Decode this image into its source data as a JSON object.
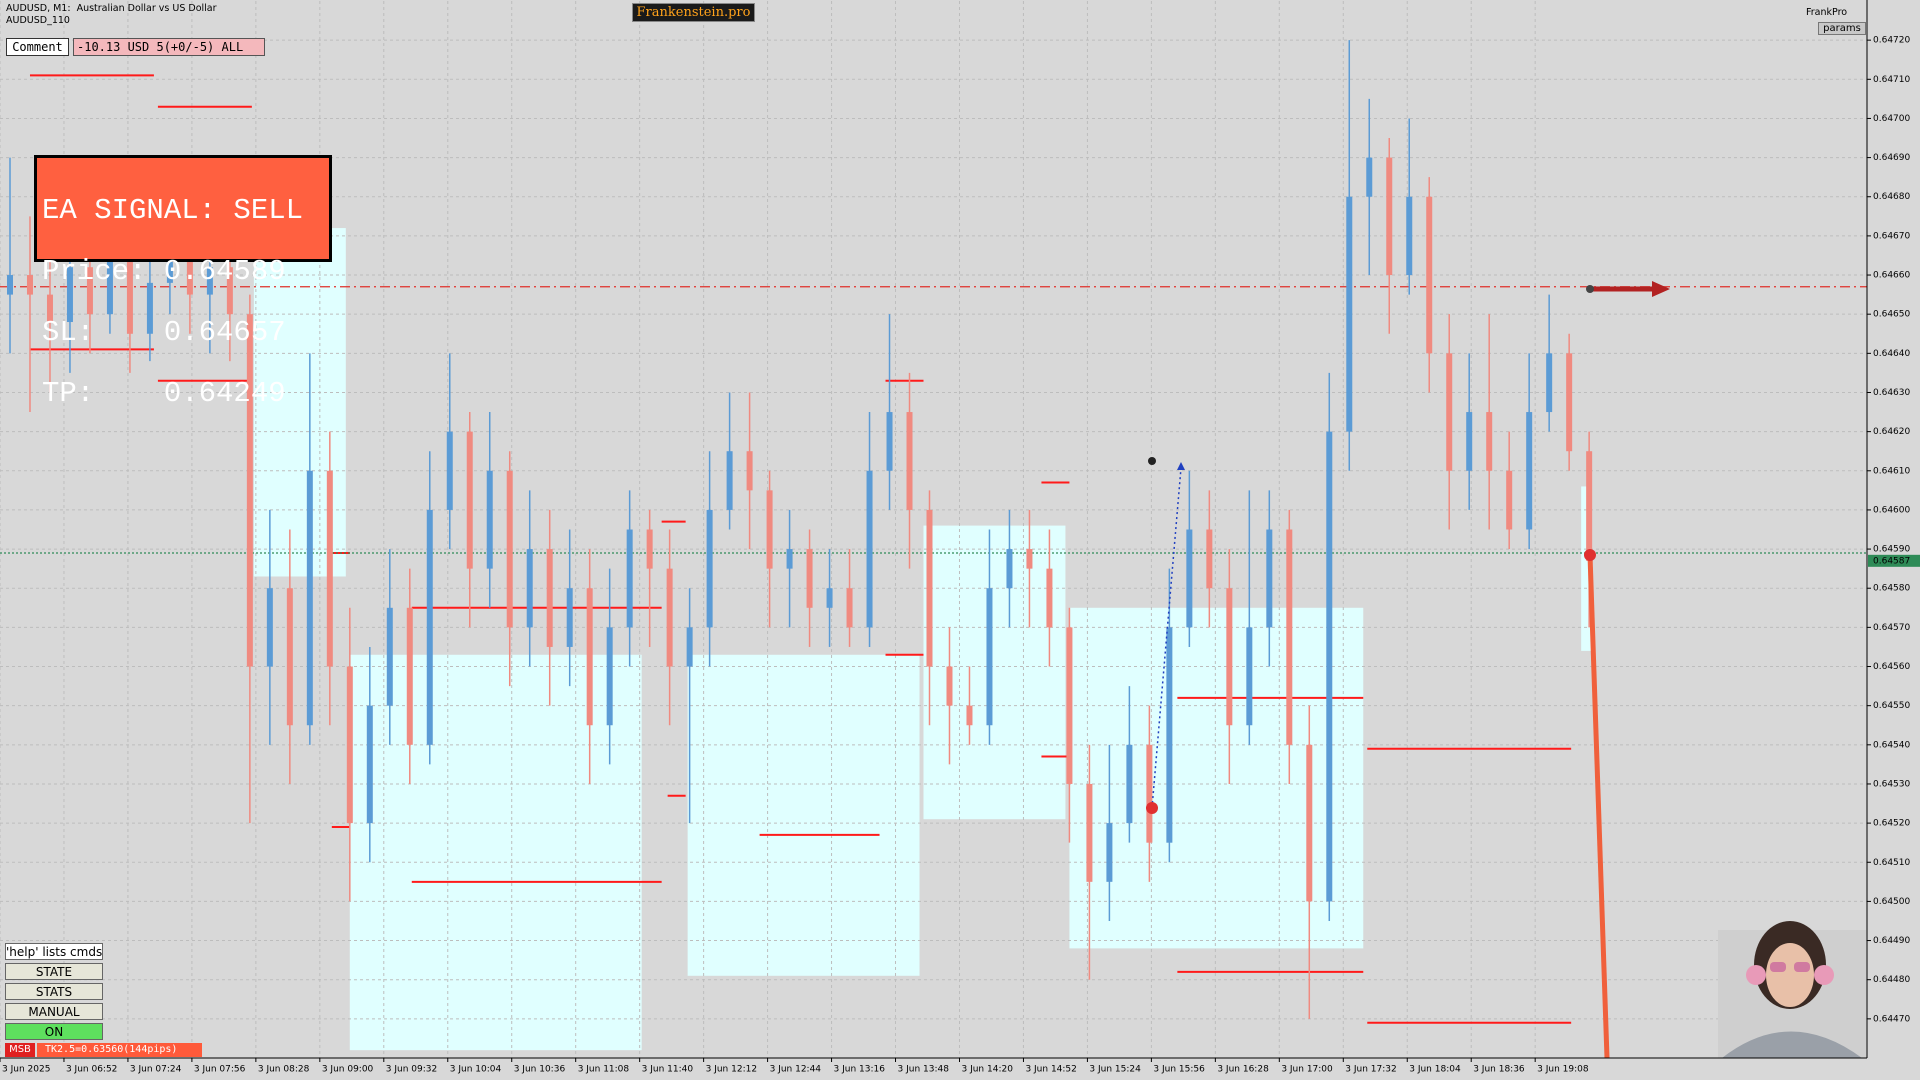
{
  "chart_data": {
    "type": "candlestick",
    "title": "AUDUSD, M1:  Australian Dollar vs US Dollar",
    "subtitle": "AUDUSD_110",
    "up_color": "#5b9bd5",
    "down_color": "#f08a80",
    "grid": true,
    "xlim": [
      0,
      934
    ],
    "ylim": [
      0.6446,
      0.6473
    ],
    "xticks": [
      {
        "value": 0,
        "label": "3 Jun 2025"
      },
      {
        "value": 32,
        "label": "3 Jun 06:52"
      },
      {
        "value": 64,
        "label": "3 Jun 07:24"
      },
      {
        "value": 96,
        "label": "3 Jun 07:56"
      },
      {
        "value": 128,
        "label": "3 Jun 08:28"
      },
      {
        "value": 160,
        "label": "3 Jun 09:00"
      },
      {
        "value": 192,
        "label": "3 Jun 09:32"
      },
      {
        "value": 224,
        "label": "3 Jun 10:04"
      },
      {
        "value": 256,
        "label": "3 Jun 10:36"
      },
      {
        "value": 288,
        "label": "3 Jun 11:08"
      },
      {
        "value": 320,
        "label": "3 Jun 11:40"
      },
      {
        "value": 352,
        "label": "3 Jun 12:12"
      },
      {
        "value": 384,
        "label": "3 Jun 12:44"
      },
      {
        "value": 416,
        "label": "3 Jun 13:16"
      },
      {
        "value": 448,
        "label": "3 Jun 13:48"
      },
      {
        "value": 480,
        "label": "3 Jun 14:20"
      },
      {
        "value": 512,
        "label": "3 Jun 14:52"
      },
      {
        "value": 544,
        "label": "3 Jun 15:24"
      },
      {
        "value": 576,
        "label": "3 Jun 15:56"
      },
      {
        "value": 608,
        "label": "3 Jun 16:28"
      },
      {
        "value": 640,
        "label": "3 Jun 17:00"
      },
      {
        "value": 672,
        "label": "3 Jun 17:32"
      },
      {
        "value": 704,
        "label": "3 Jun 18:04"
      },
      {
        "value": 736,
        "label": "3 Jun 18:36"
      },
      {
        "value": 768,
        "label": "3 Jun 19:08"
      }
    ],
    "yticks": [
      {
        "value": 0.6447,
        "label": "0.64470"
      },
      {
        "value": 0.6448,
        "label": "0.64480"
      },
      {
        "value": 0.6449,
        "label": "0.64490"
      },
      {
        "value": 0.645,
        "label": "0.64500"
      },
      {
        "value": 0.6451,
        "label": "0.64510"
      },
      {
        "value": 0.6452,
        "label": "0.64520"
      },
      {
        "value": 0.6453,
        "label": "0.64530"
      },
      {
        "value": 0.6454,
        "label": "0.64540"
      },
      {
        "value": 0.6455,
        "label": "0.64550"
      },
      {
        "value": 0.6456,
        "label": "0.64560"
      },
      {
        "value": 0.6457,
        "label": "0.64570"
      },
      {
        "value": 0.6458,
        "label": "0.64580"
      },
      {
        "value": 0.6459,
        "label": "0.64590"
      },
      {
        "value": 0.646,
        "label": "0.64600"
      },
      {
        "value": 0.6461,
        "label": "0.64610"
      },
      {
        "value": 0.6462,
        "label": "0.64620"
      },
      {
        "value": 0.6463,
        "label": "0.64630"
      },
      {
        "value": 0.6464,
        "label": "0.64640"
      },
      {
        "value": 0.6465,
        "label": "0.64650"
      },
      {
        "value": 0.6466,
        "label": "0.64660"
      },
      {
        "value": 0.6467,
        "label": "0.64670"
      },
      {
        "value": 0.6468,
        "label": "0.64680"
      },
      {
        "value": 0.6469,
        "label": "0.64690"
      },
      {
        "value": 0.647,
        "label": "0.64700"
      },
      {
        "value": 0.6471,
        "label": "0.64710"
      },
      {
        "value": 0.6472,
        "label": "0.64720"
      }
    ],
    "x": [
      5,
      15,
      25,
      35,
      45,
      55,
      65,
      75,
      85,
      95,
      105,
      115,
      125,
      135,
      145,
      155,
      165,
      175,
      185,
      195,
      205,
      215,
      225,
      235,
      245,
      255,
      265,
      275,
      285,
      295,
      305,
      315,
      325,
      335,
      345,
      355,
      365,
      375,
      385,
      395,
      405,
      415,
      425,
      435,
      445,
      455,
      465,
      475,
      485,
      495,
      505,
      515,
      525,
      535,
      545,
      555,
      565,
      575,
      585,
      595,
      605,
      615,
      625,
      635,
      645,
      655,
      665,
      675,
      685,
      695,
      705,
      715,
      725,
      735,
      745,
      755,
      765,
      775,
      785,
      795
    ],
    "open": [
      0.64655,
      0.6466,
      0.64655,
      0.64648,
      0.64662,
      0.6465,
      0.64665,
      0.64645,
      0.64658,
      0.64668,
      0.64655,
      0.64662,
      0.6465,
      0.6456,
      0.6458,
      0.64545,
      0.6461,
      0.6456,
      0.6452,
      0.6455,
      0.64575,
      0.6454,
      0.646,
      0.6462,
      0.64585,
      0.6461,
      0.6457,
      0.6459,
      0.64565,
      0.6458,
      0.64545,
      0.6457,
      0.64595,
      0.64585,
      0.6456,
      0.6457,
      0.646,
      0.64615,
      0.64605,
      0.64585,
      0.6459,
      0.64575,
      0.6458,
      0.6457,
      0.6461,
      0.64625,
      0.646,
      0.6456,
      0.6455,
      0.64545,
      0.6458,
      0.6459,
      0.64585,
      0.6457,
      0.6453,
      0.64505,
      0.6452,
      0.6454,
      0.64515,
      0.6457,
      0.64595,
      0.6458,
      0.64545,
      0.6457,
      0.64595,
      0.6454,
      0.645,
      0.6462,
      0.6468,
      0.6469,
      0.6466,
      0.6468,
      0.6464,
      0.6461,
      0.64625,
      0.6461,
      0.64595,
      0.64625,
      0.6464,
      0.64615
    ],
    "high": [
      0.6469,
      0.64675,
      0.64668,
      0.6468,
      0.64675,
      0.64685,
      0.64678,
      0.64672,
      0.64685,
      0.64678,
      0.64675,
      0.6467,
      0.64655,
      0.646,
      0.64595,
      0.6464,
      0.6462,
      0.64575,
      0.64565,
      0.6459,
      0.64585,
      0.64615,
      0.6464,
      0.64625,
      0.64625,
      0.64615,
      0.64605,
      0.646,
      0.64595,
      0.6459,
      0.64585,
      0.64605,
      0.646,
      0.64595,
      0.6458,
      0.64615,
      0.6463,
      0.6463,
      0.6461,
      0.646,
      0.64595,
      0.6459,
      0.6459,
      0.64625,
      0.6465,
      0.64635,
      0.64605,
      0.6457,
      0.6456,
      0.64595,
      0.646,
      0.646,
      0.64595,
      0.64575,
      0.6454,
      0.6454,
      0.64555,
      0.6455,
      0.64585,
      0.6461,
      0.64605,
      0.6459,
      0.64605,
      0.64605,
      0.646,
      0.6455,
      0.64635,
      0.6472,
      0.64705,
      0.64695,
      0.647,
      0.64685,
      0.6465,
      0.6464,
      0.6465,
      0.6462,
      0.6464,
      0.64655,
      0.64645,
      0.6462
    ],
    "low": [
      0.6464,
      0.64625,
      0.6463,
      0.64635,
      0.6464,
      0.64645,
      0.64635,
      0.64638,
      0.6465,
      0.64645,
      0.6464,
      0.64638,
      0.6452,
      0.6454,
      0.6453,
      0.6454,
      0.64545,
      0.645,
      0.6451,
      0.6454,
      0.6453,
      0.64535,
      0.6459,
      0.6457,
      0.64575,
      0.64555,
      0.6456,
      0.6455,
      0.64555,
      0.6453,
      0.64535,
      0.6456,
      0.64565,
      0.64545,
      0.6452,
      0.6456,
      0.64595,
      0.6459,
      0.6457,
      0.6457,
      0.64565,
      0.64565,
      0.64565,
      0.64565,
      0.646,
      0.64585,
      0.64545,
      0.64535,
      0.6454,
      0.6454,
      0.6457,
      0.6457,
      0.6456,
      0.64515,
      0.6448,
      0.64495,
      0.64515,
      0.64505,
      0.6451,
      0.64565,
      0.6457,
      0.6453,
      0.6454,
      0.6456,
      0.6453,
      0.6447,
      0.64495,
      0.6461,
      0.6466,
      0.64645,
      0.64655,
      0.6463,
      0.64595,
      0.646,
      0.64595,
      0.6459,
      0.6459,
      0.6462,
      0.6461,
      0.6457
    ],
    "close": [
      0.6466,
      0.64655,
      0.64648,
      0.64662,
      0.6465,
      0.64665,
      0.64645,
      0.64658,
      0.64668,
      0.64655,
      0.64662,
      0.6465,
      0.6456,
      0.6458,
      0.64545,
      0.6461,
      0.6456,
      0.6452,
      0.6455,
      0.64575,
      0.6454,
      0.646,
      0.6462,
      0.64585,
      0.6461,
      0.6457,
      0.6459,
      0.64565,
      0.6458,
      0.64545,
      0.6457,
      0.64595,
      0.64585,
      0.6456,
      0.6457,
      0.646,
      0.64615,
      0.64605,
      0.64585,
      0.6459,
      0.64575,
      0.6458,
      0.6457,
      0.6461,
      0.64625,
      0.646,
      0.6456,
      0.6455,
      0.64545,
      0.6458,
      0.6459,
      0.64585,
      0.6457,
      0.6453,
      0.64505,
      0.6452,
      0.6454,
      0.64515,
      0.6457,
      0.64595,
      0.6458,
      0.64545,
      0.6457,
      0.64595,
      0.6454,
      0.645,
      0.6462,
      0.6468,
      0.6469,
      0.6466,
      0.6468,
      0.6464,
      0.6461,
      0.64625,
      0.6461,
      0.64595,
      0.64625,
      0.6464,
      0.64615,
      0.64587
    ],
    "zones": [
      {
        "x": [
          127,
          173
        ],
        "y": [
          0.64583,
          0.64672
        ]
      },
      {
        "x": [
          175,
          321
        ],
        "y": [
          0.64462,
          0.64563
        ]
      },
      {
        "x": [
          344,
          460
        ],
        "y": [
          0.64481,
          0.64563
        ]
      },
      {
        "x": [
          462,
          533
        ],
        "y": [
          0.64521,
          0.64596
        ]
      },
      {
        "x": [
          535,
          682
        ],
        "y": [
          0.64488,
          0.64575
        ]
      },
      {
        "x": [
          791,
          796
        ],
        "y": [
          0.64564,
          0.64606
        ]
      }
    ],
    "levels": [
      {
        "x": [
          15,
          77
        ],
        "y": 0.64711
      },
      {
        "x": [
          79,
          126
        ],
        "y": 0.64703
      },
      {
        "x": [
          15,
          77
        ],
        "y": 0.64641
      },
      {
        "x": [
          79,
          126
        ],
        "y": 0.64633
      },
      {
        "x": [
          166,
          175
        ],
        "y": 0.64589
      },
      {
        "x": [
          166,
          175
        ],
        "y": 0.64519
      },
      {
        "x": [
          206,
          331
        ],
        "y": 0.64575
      },
      {
        "x": [
          206,
          331
        ],
        "y": 0.64505
      },
      {
        "x": [
          331,
          343
        ],
        "y": 0.64597
      },
      {
        "x": [
          334,
          343
        ],
        "y": 0.64527
      },
      {
        "x": [
          380,
          440
        ],
        "y": 0.64517
      },
      {
        "x": [
          443,
          462
        ],
        "y": 0.64633
      },
      {
        "x": [
          443,
          462
        ],
        "y": 0.64563
      },
      {
        "x": [
          521,
          535
        ],
        "y": 0.64607
      },
      {
        "x": [
          521,
          535
        ],
        "y": 0.64537
      },
      {
        "x": [
          589,
          682
        ],
        "y": 0.64552
      },
      {
        "x": [
          589,
          682
        ],
        "y": 0.64482
      },
      {
        "x": [
          684,
          786
        ],
        "y": 0.64539
      },
      {
        "x": [
          684,
          786
        ],
        "y": 0.64469
      }
    ],
    "hlines": [
      {
        "y": 0.64657,
        "color": "#e0302a",
        "style": "dashdot"
      },
      {
        "y": 0.64589,
        "color": "#2e8b57",
        "style": "dotted"
      }
    ],
    "bid": {
      "value": 0.64587,
      "label": "0.64587"
    }
  },
  "overlay": {
    "brand": "Frankenstein.pro",
    "user": "FrankPro",
    "params": "params",
    "comment_button": "Comment",
    "comment_text": "-10.13 USD 5(+0/-5) ALL",
    "signal": [
      "EA SIGNAL: SELL",
      "Price: 0.64589",
      "SL:    0.64657",
      "TP:    0.64249"
    ],
    "buttons": [
      "'help' lists cmds",
      "STATE",
      "STATS",
      "MANUAL",
      "ON"
    ],
    "msb": "MSB",
    "target": "TK2.5=0.63560(144pips)"
  }
}
